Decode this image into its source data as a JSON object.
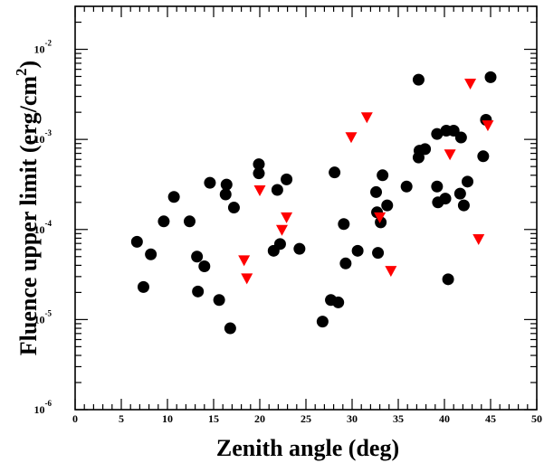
{
  "chart_data": {
    "type": "scatter",
    "xlabel": "Zenith angle (deg)",
    "ylabel_main": "Fluence upper limit (erg/cm",
    "ylabel_sup": "2",
    "ylabel_tail": ")",
    "xlim": [
      0,
      50
    ],
    "ylim": [
      1e-06,
      0.03
    ],
    "yscale": "log",
    "x_ticks": [
      "0",
      "5",
      "10",
      "15",
      "20",
      "25",
      "30",
      "35",
      "40",
      "45",
      "50"
    ],
    "y_ticks": [
      {
        "base": "10",
        "exp": "-6"
      },
      {
        "base": "10",
        "exp": "-5"
      },
      {
        "base": "10",
        "exp": "-4"
      },
      {
        "base": "10",
        "exp": "-3"
      },
      {
        "base": "10",
        "exp": "-2"
      }
    ],
    "series": [
      {
        "marker": "circle",
        "color": "#000000",
        "points": [
          [
            6.7,
            7.3e-05
          ],
          [
            7.4,
            2.3e-05
          ],
          [
            8.2,
            5.3e-05
          ],
          [
            9.6,
            0.000123
          ],
          [
            10.7,
            0.00023
          ],
          [
            12.4,
            0.000123
          ],
          [
            13.2,
            5e-05
          ],
          [
            13.3,
            2.05e-05
          ],
          [
            14.0,
            3.9e-05
          ],
          [
            14.6,
            0.00033
          ],
          [
            15.6,
            1.65e-05
          ],
          [
            16.3,
            0.000245
          ],
          [
            16.4,
            0.000315
          ],
          [
            16.8,
            8e-06
          ],
          [
            17.2,
            0.000175
          ],
          [
            19.9,
            0.00053
          ],
          [
            19.9,
            0.00042
          ],
          [
            21.5,
            5.8e-05
          ],
          [
            21.9,
            0.000275
          ],
          [
            22.2,
            6.9e-05
          ],
          [
            22.9,
            0.00036
          ],
          [
            24.3,
            6.1e-05
          ],
          [
            26.8,
            9.5e-06
          ],
          [
            27.7,
            1.65e-05
          ],
          [
            28.1,
            0.00043
          ],
          [
            28.5,
            1.55e-05
          ],
          [
            29.1,
            0.000115
          ],
          [
            29.3,
            4.2e-05
          ],
          [
            30.6,
            5.8e-05
          ],
          [
            32.6,
            0.00026
          ],
          [
            32.7,
            0.000155
          ],
          [
            32.8,
            5.5e-05
          ],
          [
            33.1,
            0.00012
          ],
          [
            33.3,
            0.0004
          ],
          [
            33.8,
            0.000185
          ],
          [
            35.9,
            0.0003
          ],
          [
            37.2,
            0.0046
          ],
          [
            37.2,
            0.00063
          ],
          [
            37.3,
            0.00075
          ],
          [
            37.9,
            0.00078
          ],
          [
            39.2,
            0.00115
          ],
          [
            39.2,
            0.0003
          ],
          [
            39.3,
            0.0002
          ],
          [
            40.1,
            0.00022
          ],
          [
            40.2,
            0.00125
          ],
          [
            40.4,
            2.8e-05
          ],
          [
            41.0,
            0.00125
          ],
          [
            41.7,
            0.00025
          ],
          [
            41.8,
            0.00105
          ],
          [
            42.1,
            0.000185
          ],
          [
            42.5,
            0.00034
          ],
          [
            44.2,
            0.00065
          ],
          [
            44.5,
            0.00165
          ],
          [
            45.0,
            0.0049
          ]
        ]
      },
      {
        "marker": "triangle-down",
        "color": "#ff0000",
        "points": [
          [
            18.3,
            4.6e-05
          ],
          [
            18.6,
            2.9e-05
          ],
          [
            20.0,
            0.000275
          ],
          [
            22.4,
            0.0001
          ],
          [
            22.9,
            0.000138
          ],
          [
            29.9,
            0.00107
          ],
          [
            31.6,
            0.00178
          ],
          [
            33.0,
            0.000138
          ],
          [
            34.2,
            3.5e-05
          ],
          [
            40.6,
            0.00069
          ],
          [
            42.8,
            0.0042
          ],
          [
            43.7,
            7.9e-05
          ],
          [
            44.7,
            0.00145
          ]
        ]
      }
    ]
  }
}
